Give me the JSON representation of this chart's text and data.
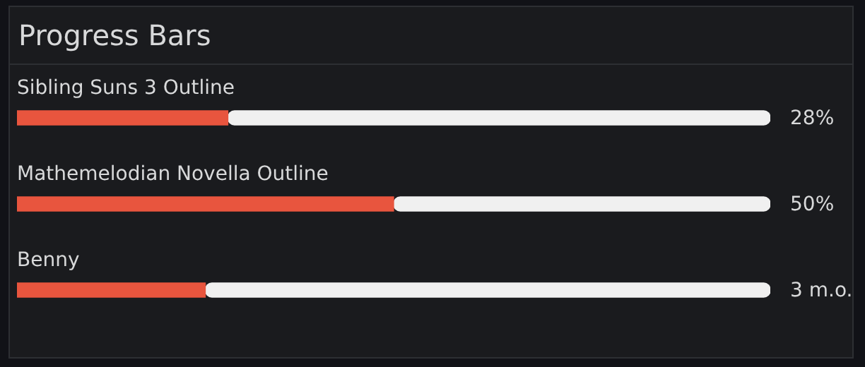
{
  "chart_data": {
    "type": "bar",
    "title": "Progress Bars",
    "orientation": "horizontal",
    "stacked": true,
    "xlim": [
      0,
      100
    ],
    "tick_labels": false,
    "categories": [
      "Sibling Suns 3 Outline",
      "Mathemelodian Novella Outline",
      "Benny"
    ],
    "series": [
      {
        "color": "#e8553e",
        "values": [
          28,
          50,
          25
        ],
        "value_labels": [
          "28%",
          "50%",
          null
        ]
      },
      {
        "color": "#f0f0f0",
        "values": [
          72,
          50,
          75
        ]
      }
    ],
    "annotations": [
      "3 m.o."
    ]
  }
}
